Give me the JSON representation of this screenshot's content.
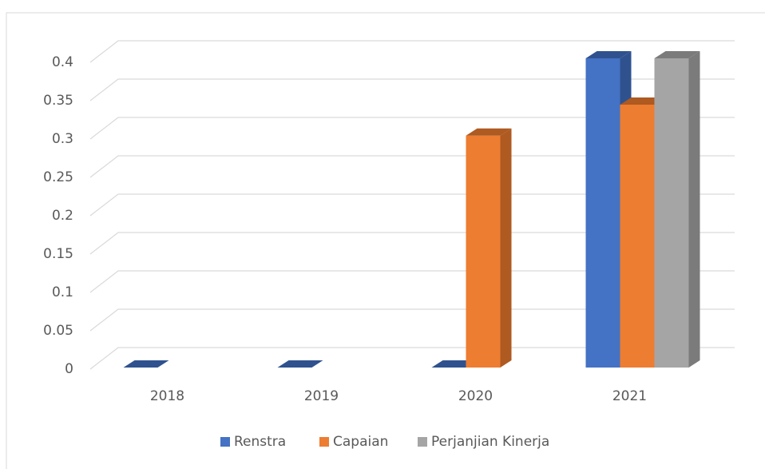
{
  "chart_data": {
    "type": "bar3d",
    "categories": [
      "2018",
      "2019",
      "2020",
      "2021"
    ],
    "series": [
      {
        "name": "Renstra",
        "color": "#4472c4",
        "side": "#2f528f",
        "values": [
          0,
          0,
          0,
          0.4
        ]
      },
      {
        "name": "Capaian",
        "color": "#ed7d31",
        "side": "#ae5a21",
        "values": [
          null,
          null,
          0.3,
          0.34
        ]
      },
      {
        "name": "Perjanjian Kinerja",
        "color": "#a5a5a5",
        "side": "#7b7b7b",
        "values": [
          null,
          null,
          null,
          0.4
        ]
      }
    ],
    "ylim": [
      0,
      0.4
    ],
    "yticks": [
      0,
      0.05,
      0.1,
      0.15,
      0.2,
      0.25,
      0.3,
      0.35,
      0.4
    ],
    "grid": true,
    "legend": "bottom"
  }
}
